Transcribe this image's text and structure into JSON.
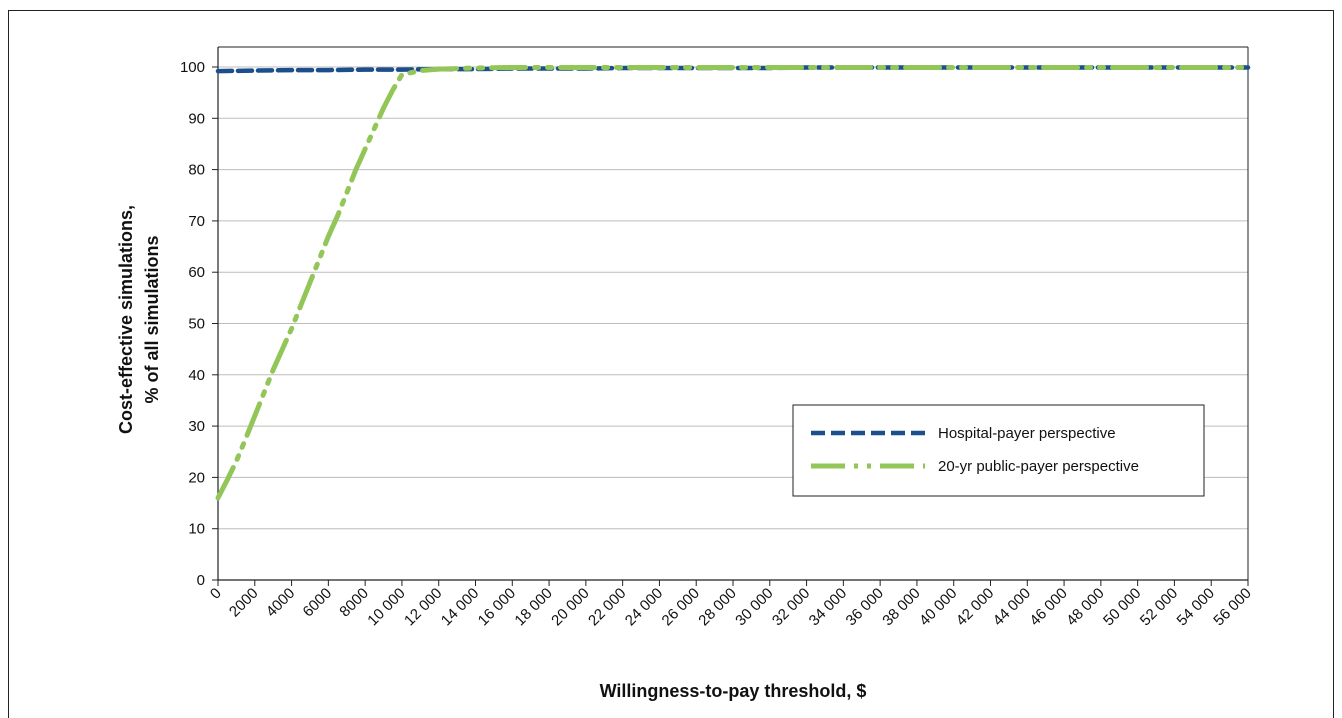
{
  "chart_data": {
    "type": "line",
    "title": "",
    "xlabel": "Willingness-to-pay threshold, $",
    "ylabel_line1": "Cost-effective simulations,",
    "ylabel_line2": "% of all simulations",
    "xlim": [
      0,
      56000
    ],
    "ylim": [
      0,
      100
    ],
    "grid": true,
    "legend_position": "right-center",
    "x_ticks": [
      0,
      2000,
      4000,
      6000,
      8000,
      10000,
      12000,
      14000,
      16000,
      18000,
      20000,
      22000,
      24000,
      26000,
      28000,
      30000,
      32000,
      34000,
      36000,
      38000,
      40000,
      42000,
      44000,
      46000,
      48000,
      50000,
      52000,
      54000,
      56000
    ],
    "x_tick_labels": [
      "0",
      "2000",
      "4000",
      "6000",
      "8000",
      "10 000",
      "12 000",
      "14 000",
      "16 000",
      "18 000",
      "20 000",
      "22 000",
      "24 000",
      "26 000",
      "28 000",
      "30 000",
      "32 000",
      "34 000",
      "36 000",
      "38 000",
      "40 000",
      "42 000",
      "44 000",
      "46 000",
      "48 000",
      "50 000",
      "52 000",
      "54 000",
      "56 000"
    ],
    "y_ticks": [
      0,
      10,
      20,
      30,
      40,
      50,
      60,
      70,
      80,
      90,
      100
    ],
    "y_tick_labels": [
      "0",
      "10",
      "20",
      "30",
      "40",
      "50",
      "60",
      "70",
      "80",
      "90",
      "100"
    ],
    "series": [
      {
        "name": "Hospital-payer perspective",
        "color": "#1a4f8b",
        "style": "dashed",
        "x": [
          0,
          2000,
          4000,
          6000,
          8000,
          10000,
          12000,
          14000,
          16000,
          18000,
          20000,
          22000,
          24000,
          26000,
          28000,
          30000,
          32000,
          34000,
          36000,
          38000,
          40000,
          42000,
          44000,
          46000,
          48000,
          50000,
          52000,
          54000,
          56000
        ],
        "y": [
          99.2,
          99.3,
          99.4,
          99.4,
          99.5,
          99.5,
          99.6,
          99.6,
          99.7,
          99.7,
          99.7,
          99.8,
          99.8,
          99.8,
          99.8,
          99.8,
          99.9,
          99.9,
          99.9,
          99.9,
          99.9,
          99.9,
          99.9,
          99.9,
          99.9,
          99.9,
          99.9,
          99.9,
          99.9
        ]
      },
      {
        "name": "20-yr public-payer perspective",
        "color": "#93c658",
        "style": "dash-dot-dot",
        "x": [
          0,
          500,
          1000,
          1500,
          2000,
          2500,
          3000,
          3500,
          4000,
          4500,
          5000,
          5500,
          6000,
          6500,
          7000,
          7500,
          8000,
          8500,
          9000,
          9500,
          10000,
          11000,
          12000,
          14000,
          16000,
          18000,
          20000,
          24000,
          28000,
          32000,
          36000,
          40000,
          44000,
          48000,
          52000,
          56000
        ],
        "y": [
          16,
          19.5,
          23.2,
          27.5,
          32,
          36.5,
          41,
          45,
          49,
          53.5,
          58,
          62.5,
          67,
          71,
          75.5,
          80,
          84,
          88,
          92,
          95.5,
          98.5,
          99.3,
          99.6,
          99.8,
          99.9,
          99.9,
          99.9,
          99.9,
          99.9,
          99.9,
          99.9,
          99.9,
          99.9,
          99.9,
          99.9,
          99.9
        ]
      }
    ]
  }
}
